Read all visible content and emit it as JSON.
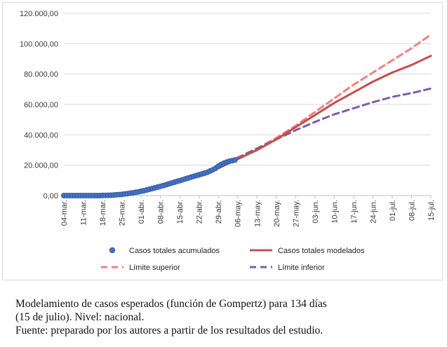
{
  "chart_data": {
    "type": "line",
    "title": "",
    "xlabel": "",
    "ylabel": "",
    "ylim": [
      0,
      120000
    ],
    "y_ticks": [
      "0,00",
      "20.000,00",
      "40.000,00",
      "60.000,00",
      "80.000,00",
      "100.000,00",
      "120.000,00"
    ],
    "y_tick_values": [
      0,
      20000,
      40000,
      60000,
      80000,
      100000,
      120000
    ],
    "x_range": [
      1,
      134
    ],
    "x_ticks": [
      "04-mar.",
      "11-mar.",
      "18-mar.",
      "25-mar.",
      "01-abr.",
      "08-abr.",
      "15-abr.",
      "22-abr.",
      "29-abr.",
      "06-may.",
      "13-may.",
      "20-may.",
      "27-may.",
      "03-jun.",
      "10-jun.",
      "17-jun.",
      "24-jun.",
      "01-jul.",
      "08-jul.",
      "15-jul."
    ],
    "x_tick_days": [
      1,
      8,
      15,
      22,
      29,
      36,
      43,
      50,
      57,
      64,
      71,
      78,
      85,
      92,
      99,
      106,
      113,
      120,
      127,
      134
    ],
    "grid": "horizontal",
    "legend_position": "bottom",
    "series": [
      {
        "name": "Casos totales acumulados",
        "style": "markers",
        "color": "#4472c4",
        "x": [
          1,
          2,
          3,
          4,
          5,
          6,
          7,
          8,
          9,
          10,
          11,
          12,
          13,
          14,
          15,
          16,
          17,
          18,
          19,
          20,
          21,
          22,
          23,
          24,
          25,
          26,
          27,
          28,
          29,
          30,
          31,
          32,
          33,
          34,
          35,
          36,
          37,
          38,
          39,
          40,
          41,
          42,
          43,
          44,
          45,
          46,
          47,
          48,
          49,
          50,
          51,
          52,
          53,
          54,
          55,
          56,
          57,
          58,
          59,
          60,
          61,
          62,
          63
        ],
        "values": [
          0,
          0,
          0,
          0,
          0,
          0,
          0,
          0,
          0,
          0,
          0,
          0,
          0,
          0,
          100,
          150,
          200,
          250,
          350,
          500,
          650,
          850,
          1050,
          1300,
          1550,
          1800,
          2100,
          2450,
          2850,
          3250,
          3700,
          4150,
          4600,
          5100,
          5600,
          6100,
          6600,
          7100,
          7650,
          8200,
          8750,
          9300,
          9850,
          10400,
          10950,
          11550,
          12100,
          12650,
          13200,
          13700,
          14200,
          14750,
          15300,
          16200,
          17000,
          18000,
          19300,
          20500,
          21300,
          22000,
          22600,
          23000,
          23400
        ]
      },
      {
        "name": "Casos totales modelados",
        "style": "solid",
        "color": "#c0504d",
        "x": [
          57,
          64,
          71,
          78,
          85,
          92,
          99,
          106,
          113,
          120,
          127,
          134
        ],
        "values": [
          18000,
          24000,
          30000,
          37000,
          45000,
          53000,
          61000,
          68000,
          75000,
          81000,
          86000,
          92000
        ]
      },
      {
        "name": "Límite superior",
        "style": "dashed",
        "color": "#f08080",
        "x": [
          50,
          57,
          64,
          71,
          78,
          85,
          92,
          99,
          106,
          113,
          120,
          127,
          134
        ],
        "values": [
          12500,
          18500,
          24500,
          31000,
          38000,
          46000,
          55000,
          64000,
          73000,
          81000,
          89000,
          97000,
          106000
        ]
      },
      {
        "name": "Límite inferior",
        "style": "dashed",
        "color": "#7a5ea8",
        "x": [
          50,
          57,
          64,
          71,
          78,
          85,
          92,
          99,
          106,
          113,
          120,
          127,
          134
        ],
        "values": [
          12500,
          19500,
          25000,
          31000,
          37000,
          43000,
          48500,
          53500,
          57500,
          61500,
          65000,
          67500,
          70500
        ]
      }
    ]
  },
  "caption": {
    "line1": "Modelamiento de casos esperados (función de Gompertz) para 134 días",
    "line2": "(15 de julio). Nivel: nacional.",
    "line3": "Fuente: preparado por los autores a partir de los resultados del estudio."
  }
}
